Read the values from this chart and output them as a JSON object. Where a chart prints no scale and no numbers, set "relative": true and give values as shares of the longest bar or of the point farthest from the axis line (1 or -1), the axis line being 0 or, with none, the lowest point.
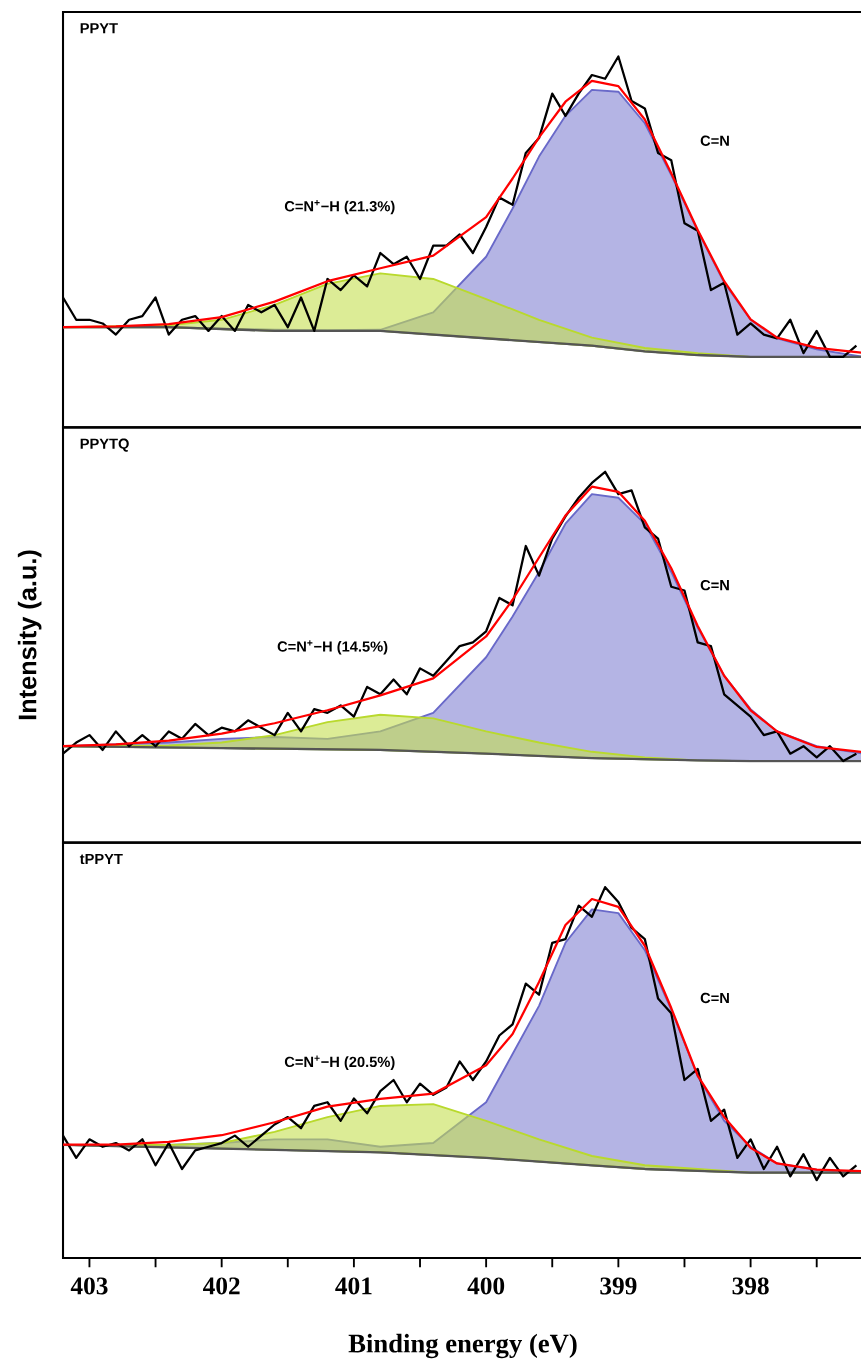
{
  "chart_data": [
    {
      "type": "line",
      "title": "PPYT",
      "relative": true,
      "xlim": [
        403.2,
        397.15
      ],
      "tick_labels": false,
      "annotations": [
        "C=N$^{+}$−H (21.3%)",
        "C=N"
      ],
      "series": [
        {
          "type": "area",
          "color": "#b4b4e4",
          "x": [
            403.2,
            402.4,
            401.6,
            401.2,
            400.8,
            400.4,
            400.0,
            399.8,
            399.6,
            399.4,
            399.2,
            399.0,
            398.8,
            398.6,
            398.4,
            398.2,
            398.0,
            397.8,
            397.5,
            397.15
          ],
          "values": [
            0.27,
            0.27,
            0.263,
            0.262,
            0.263,
            0.31,
            0.46,
            0.59,
            0.73,
            0.84,
            0.91,
            0.905,
            0.82,
            0.68,
            0.53,
            0.39,
            0.29,
            0.24,
            0.21,
            0.19
          ]
        },
        {
          "type": "area",
          "color": "#dcec96",
          "x": [
            403.2,
            402.4,
            402.0,
            401.6,
            401.2,
            400.8,
            400.4,
            400.0,
            399.6,
            399.2,
            398.8,
            398.4,
            398.0,
            397.15
          ],
          "values": [
            0.27,
            0.275,
            0.29,
            0.33,
            0.387,
            0.415,
            0.4,
            0.346,
            0.29,
            0.242,
            0.214,
            0.2,
            0.19,
            0.19
          ]
        },
        {
          "color": "#555555",
          "x": [
            403.2,
            402.4,
            401.6,
            400.8,
            400.0,
            399.2,
            398.8,
            398.4,
            398.0,
            397.15
          ],
          "values": [
            0.27,
            0.27,
            0.26,
            0.26,
            0.24,
            0.22,
            0.205,
            0.195,
            0.19,
            0.19
          ]
        },
        {
          "color": "#000000",
          "x": [
            403.2,
            403.1,
            403.0,
            402.9,
            402.8,
            402.7,
            402.6,
            402.5,
            402.4,
            402.3,
            402.2,
            402.1,
            402.0,
            401.9,
            401.8,
            401.7,
            401.6,
            401.5,
            401.4,
            401.3,
            401.2,
            401.1,
            401.0,
            400.9,
            400.8,
            400.7,
            400.6,
            400.5,
            400.4,
            400.3,
            400.2,
            400.1,
            400.0,
            399.9,
            399.8,
            399.7,
            399.6,
            399.5,
            399.4,
            399.3,
            399.2,
            399.1,
            399.0,
            398.9,
            398.8,
            398.7,
            398.6,
            398.5,
            398.4,
            398.3,
            398.2,
            398.1,
            398.0,
            397.9,
            397.8,
            397.7,
            397.6,
            397.5,
            397.4,
            397.3,
            397.2
          ],
          "values": [
            0.35,
            0.29,
            0.29,
            0.28,
            0.25,
            0.29,
            0.3,
            0.35,
            0.25,
            0.29,
            0.3,
            0.26,
            0.3,
            0.26,
            0.33,
            0.31,
            0.33,
            0.27,
            0.35,
            0.26,
            0.4,
            0.37,
            0.41,
            0.38,
            0.47,
            0.44,
            0.46,
            0.4,
            0.49,
            0.49,
            0.52,
            0.47,
            0.54,
            0.62,
            0.6,
            0.74,
            0.78,
            0.9,
            0.84,
            0.9,
            0.95,
            0.94,
            1.0,
            0.88,
            0.86,
            0.74,
            0.72,
            0.55,
            0.53,
            0.37,
            0.39,
            0.25,
            0.28,
            0.25,
            0.24,
            0.29,
            0.2,
            0.26,
            0.19,
            0.19,
            0.22
          ]
        },
        {
          "color": "#ff0000",
          "x": [
            403.2,
            402.8,
            402.4,
            402.0,
            401.6,
            401.2,
            400.8,
            400.4,
            400.0,
            399.8,
            399.6,
            399.4,
            399.2,
            399.0,
            398.8,
            398.6,
            398.4,
            398.2,
            398.0,
            397.8,
            397.5,
            397.15
          ],
          "values": [
            0.27,
            0.272,
            0.278,
            0.297,
            0.339,
            0.394,
            0.429,
            0.463,
            0.567,
            0.671,
            0.782,
            0.878,
            0.934,
            0.92,
            0.83,
            0.685,
            0.532,
            0.394,
            0.291,
            0.242,
            0.214,
            0.201
          ]
        }
      ]
    },
    {
      "type": "line",
      "title": "PPYTQ",
      "relative": true,
      "xlim": [
        403.2,
        397.15
      ],
      "tick_labels": false,
      "ylabel": "Intensity (a.u.)",
      "annotations": [
        "C=N$^{+}$−H (14.5%)",
        "C=N"
      ],
      "series": [
        {
          "type": "area",
          "color": "#b4b4e4",
          "x": [
            403.2,
            402.4,
            402.0,
            401.6,
            401.2,
            400.8,
            400.4,
            400.0,
            399.8,
            399.6,
            399.4,
            399.2,
            399.0,
            398.8,
            398.6,
            398.4,
            398.2,
            398.0,
            397.8,
            397.5,
            397.15
          ],
          "values": [
            0.26,
            0.27,
            0.28,
            0.285,
            0.28,
            0.3,
            0.35,
            0.5,
            0.61,
            0.73,
            0.86,
            0.94,
            0.93,
            0.86,
            0.73,
            0.58,
            0.45,
            0.36,
            0.3,
            0.26,
            0.24
          ]
        },
        {
          "type": "area",
          "color": "#dcec96",
          "x": [
            403.2,
            402.4,
            402.0,
            401.6,
            401.2,
            400.8,
            400.4,
            400.0,
            399.6,
            399.2,
            398.8,
            398.4,
            398.0,
            397.15
          ],
          "values": [
            0.26,
            0.262,
            0.27,
            0.29,
            0.325,
            0.345,
            0.335,
            0.3,
            0.27,
            0.245,
            0.23,
            0.222,
            0.22,
            0.22
          ]
        },
        {
          "color": "#555555",
          "x": [
            403.2,
            402.0,
            400.8,
            400.0,
            399.2,
            398.8,
            398.4,
            398.0,
            397.15
          ],
          "values": [
            0.26,
            0.255,
            0.25,
            0.24,
            0.228,
            0.225,
            0.222,
            0.22,
            0.22
          ]
        },
        {
          "color": "#000000",
          "x": [
            403.2,
            403.1,
            403.0,
            402.9,
            402.8,
            402.7,
            402.6,
            402.5,
            402.4,
            402.3,
            402.2,
            402.1,
            402.0,
            401.9,
            401.8,
            401.7,
            401.6,
            401.5,
            401.4,
            401.3,
            401.2,
            401.1,
            401.0,
            400.9,
            400.8,
            400.7,
            400.6,
            400.5,
            400.4,
            400.3,
            400.2,
            400.1,
            400.0,
            399.9,
            399.8,
            399.7,
            399.6,
            399.5,
            399.4,
            399.3,
            399.2,
            399.1,
            399.0,
            398.9,
            398.8,
            398.7,
            398.6,
            398.5,
            398.4,
            398.3,
            398.2,
            398.1,
            398.0,
            397.9,
            397.8,
            397.7,
            397.6,
            397.5,
            397.4,
            397.3,
            397.2
          ],
          "values": [
            0.24,
            0.27,
            0.29,
            0.25,
            0.3,
            0.26,
            0.29,
            0.26,
            0.3,
            0.28,
            0.32,
            0.29,
            0.31,
            0.3,
            0.33,
            0.31,
            0.29,
            0.35,
            0.3,
            0.36,
            0.35,
            0.37,
            0.34,
            0.42,
            0.4,
            0.44,
            0.4,
            0.47,
            0.45,
            0.49,
            0.53,
            0.54,
            0.57,
            0.66,
            0.64,
            0.8,
            0.72,
            0.82,
            0.88,
            0.93,
            0.97,
            1.0,
            0.94,
            0.95,
            0.85,
            0.82,
            0.69,
            0.68,
            0.54,
            0.53,
            0.4,
            0.37,
            0.34,
            0.29,
            0.3,
            0.24,
            0.26,
            0.23,
            0.26,
            0.22,
            0.24
          ]
        },
        {
          "color": "#ff0000",
          "x": [
            403.2,
            402.8,
            402.4,
            402.0,
            401.6,
            401.2,
            400.8,
            400.4,
            400.0,
            399.8,
            399.6,
            399.4,
            399.2,
            399.0,
            398.8,
            398.6,
            398.4,
            398.2,
            398.0,
            397.8,
            397.5,
            397.15
          ],
          "values": [
            0.26,
            0.265,
            0.275,
            0.294,
            0.322,
            0.357,
            0.397,
            0.443,
            0.556,
            0.655,
            0.769,
            0.882,
            0.96,
            0.946,
            0.868,
            0.74,
            0.584,
            0.45,
            0.357,
            0.3,
            0.258,
            0.244
          ]
        }
      ]
    },
    {
      "type": "line",
      "title": "tPPYT",
      "relative": true,
      "xlim": [
        403.2,
        397.15
      ],
      "tick_labels": "x",
      "xlabel": "Binding energy (eV)",
      "xticks": [
        403,
        {
          "value": 402.5,
          "label": null
        },
        402,
        {
          "value": 401.5,
          "label": null
        },
        401,
        {
          "value": 400.5,
          "label": null
        },
        400,
        {
          "value": 399.5,
          "label": null
        },
        399,
        {
          "value": 398.5,
          "label": null
        },
        398,
        {
          "value": 397.5,
          "label": null
        }
      ],
      "annotations": [
        "C=N$^{+}$−H (20.5%)",
        "C=N"
      ],
      "series": [
        {
          "type": "area",
          "color": "#b4b4e4",
          "x": [
            403.2,
            402.4,
            402.0,
            401.6,
            401.2,
            400.8,
            400.4,
            400.0,
            399.8,
            399.6,
            399.4,
            399.2,
            399.0,
            398.8,
            398.6,
            398.4,
            398.2,
            398.0,
            397.8,
            397.5,
            397.15
          ],
          "values": [
            0.305,
            0.305,
            0.31,
            0.32,
            0.32,
            0.3,
            0.31,
            0.42,
            0.55,
            0.68,
            0.85,
            0.94,
            0.93,
            0.83,
            0.67,
            0.49,
            0.37,
            0.3,
            0.255,
            0.238,
            0.23
          ]
        },
        {
          "type": "area",
          "color": "#dcec96",
          "x": [
            403.2,
            402.4,
            402.0,
            401.6,
            401.2,
            400.8,
            400.4,
            400.0,
            399.6,
            399.2,
            398.8,
            398.4,
            398.0,
            397.15
          ],
          "values": [
            0.305,
            0.305,
            0.31,
            0.34,
            0.38,
            0.41,
            0.415,
            0.37,
            0.32,
            0.275,
            0.25,
            0.24,
            0.23,
            0.23
          ]
        },
        {
          "color": "#555555",
          "x": [
            403.2,
            402.0,
            400.8,
            400.0,
            399.2,
            398.8,
            398.4,
            398.0,
            397.15
          ],
          "values": [
            0.305,
            0.295,
            0.285,
            0.27,
            0.25,
            0.24,
            0.235,
            0.23,
            0.23
          ]
        },
        {
          "color": "#000000",
          "x": [
            403.2,
            403.1,
            403.0,
            402.9,
            402.8,
            402.7,
            402.6,
            402.5,
            402.4,
            402.3,
            402.2,
            402.1,
            402.0,
            401.9,
            401.8,
            401.7,
            401.6,
            401.5,
            401.4,
            401.3,
            401.2,
            401.1,
            401.0,
            400.9,
            400.8,
            400.7,
            400.6,
            400.5,
            400.4,
            400.3,
            400.2,
            400.1,
            400.0,
            399.9,
            399.8,
            399.7,
            399.6,
            399.5,
            399.4,
            399.3,
            399.2,
            399.1,
            399.0,
            398.9,
            398.8,
            398.7,
            398.6,
            398.5,
            398.4,
            398.3,
            398.2,
            398.1,
            398.0,
            397.9,
            397.8,
            397.7,
            397.6,
            397.5,
            397.4,
            397.3,
            397.2
          ],
          "values": [
            0.33,
            0.27,
            0.32,
            0.3,
            0.31,
            0.29,
            0.32,
            0.25,
            0.31,
            0.24,
            0.29,
            0.3,
            0.31,
            0.33,
            0.3,
            0.33,
            0.36,
            0.38,
            0.35,
            0.41,
            0.42,
            0.37,
            0.43,
            0.39,
            0.45,
            0.48,
            0.42,
            0.47,
            0.44,
            0.46,
            0.53,
            0.48,
            0.53,
            0.6,
            0.63,
            0.74,
            0.71,
            0.85,
            0.86,
            0.95,
            0.92,
            1.0,
            0.96,
            0.89,
            0.86,
            0.7,
            0.66,
            0.48,
            0.51,
            0.37,
            0.4,
            0.27,
            0.32,
            0.24,
            0.3,
            0.22,
            0.28,
            0.21,
            0.27,
            0.22,
            0.25
          ]
        },
        {
          "color": "#ff0000",
          "x": [
            403.2,
            402.8,
            402.4,
            402.0,
            401.6,
            401.2,
            400.8,
            400.4,
            400.0,
            399.8,
            399.6,
            399.4,
            399.2,
            399.0,
            398.8,
            398.6,
            398.4,
            398.2,
            398.0,
            397.8,
            397.5,
            397.15
          ],
          "values": [
            0.306,
            0.306,
            0.313,
            0.331,
            0.366,
            0.408,
            0.429,
            0.443,
            0.52,
            0.604,
            0.744,
            0.898,
            0.968,
            0.947,
            0.842,
            0.674,
            0.492,
            0.38,
            0.297,
            0.255,
            0.238,
            0.234
          ]
        }
      ]
    }
  ]
}
